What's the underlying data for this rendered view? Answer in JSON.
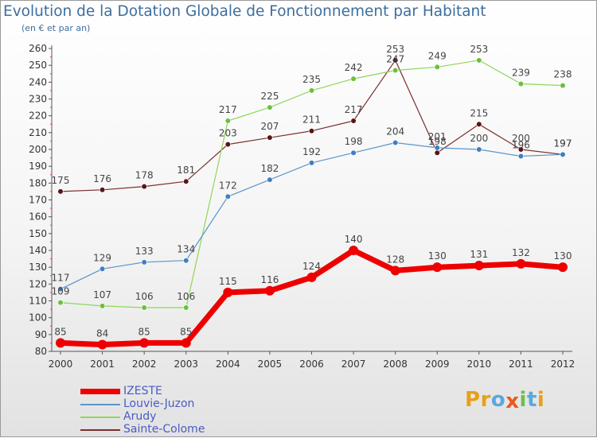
{
  "header": {
    "title": "Evolution de la Dotation Globale de Fonctionnement par Habitant",
    "subtitle": "(en € et par an)"
  },
  "logo": {
    "text": "Proxiti",
    "letters": [
      {
        "ch": "P",
        "color": "#e8a019"
      },
      {
        "ch": "r",
        "color": "#e8a019"
      },
      {
        "ch": "o",
        "color": "#5aa8e0"
      },
      {
        "ch": "x",
        "color": "#e85a1e"
      },
      {
        "ch": "i",
        "color": "#6cc04a"
      },
      {
        "ch": "t",
        "color": "#5aa8e0"
      },
      {
        "ch": "i",
        "color": "#e8a019"
      }
    ]
  },
  "chart_data": {
    "type": "line",
    "title": "Evolution de la Dotation Globale de Fonctionnement par Habitant",
    "subtitle": "(en € et par an)",
    "xlabel": "",
    "ylabel": "",
    "ylim": [
      80,
      260
    ],
    "ystep": 10,
    "grid": false,
    "legend_position": "bottom-left",
    "categories": [
      "2000",
      "2001",
      "2002",
      "2003",
      "2004",
      "2005",
      "2006",
      "2007",
      "2008",
      "2009",
      "2010",
      "2011",
      "2012"
    ],
    "series": [
      {
        "name": "Sainte-Colome",
        "color": "#7a2e2e",
        "marker": "#5a1414",
        "width": 1.2,
        "values": [
          175,
          176,
          178,
          181,
          203,
          207,
          211,
          217,
          253,
          198,
          215,
          200,
          197
        ],
        "labels": [
          "175",
          "176",
          "178",
          "181",
          "203",
          "207",
          "211",
          "217",
          "253",
          "198",
          "215",
          "200",
          "197"
        ]
      },
      {
        "name": "Arudy",
        "color": "#8fd65a",
        "marker": "#6cc03a",
        "width": 1.2,
        "values": [
          109,
          107,
          106,
          106,
          217,
          225,
          235,
          242,
          247,
          249,
          253,
          239,
          238
        ],
        "labels": [
          "109",
          "107",
          "106",
          "106",
          "217",
          "225",
          "235",
          "242",
          "247",
          "249",
          "253",
          "239",
          "238"
        ]
      },
      {
        "name": "Louvie-Juzon",
        "color": "#5b94c9",
        "marker": "#3f7fbf",
        "width": 1.2,
        "values": [
          117,
          129,
          133,
          134,
          172,
          182,
          192,
          198,
          204,
          201,
          200,
          196,
          197
        ],
        "labels": [
          "117",
          "129",
          "133",
          "134",
          "172",
          "182",
          "192",
          "198",
          "204",
          "201",
          "200",
          "196",
          "197"
        ]
      },
      {
        "name": "IZESTE",
        "color": "#ee0000",
        "marker": "#ee0000",
        "width": 7,
        "values": [
          85,
          84,
          85,
          85,
          115,
          116,
          124,
          140,
          128,
          130,
          131,
          132,
          130
        ],
        "labels": [
          "85",
          "84",
          "85",
          "85",
          "115",
          "116",
          "124",
          "140",
          "128",
          "130",
          "131",
          "132",
          "130"
        ]
      }
    ],
    "legend_order": [
      "IZESTE",
      "Louvie-Juzon",
      "Arudy",
      "Sainte-Colome"
    ]
  }
}
